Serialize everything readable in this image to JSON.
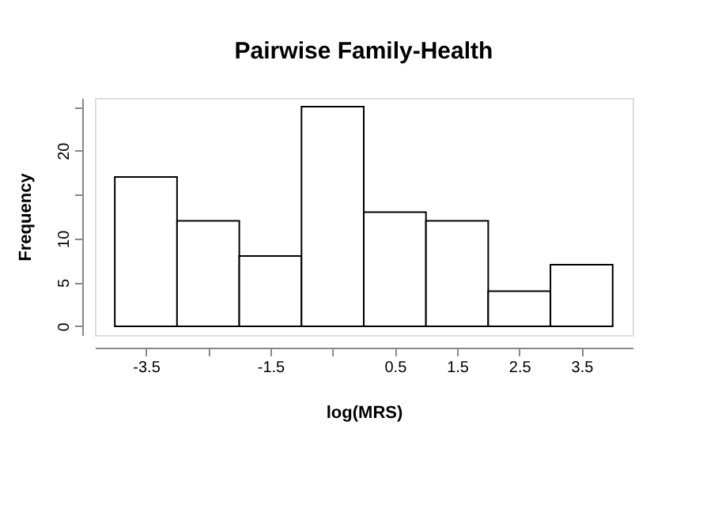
{
  "chart_data": {
    "type": "histogram",
    "title": "Pairwise Family-Health",
    "xlabel": "log(MRS)",
    "ylabel": "Frequency",
    "bins": [
      -4,
      -3,
      -2,
      -1,
      0,
      1,
      2,
      3,
      4
    ],
    "values": [
      17,
      12,
      8,
      25,
      13,
      12,
      4,
      7
    ],
    "color": "#ffffff",
    "xlim": [
      -4.32,
      4.32
    ],
    "ylim": [
      -1,
      26
    ],
    "xticks": [
      -3.5,
      {
        "value": -2.5,
        "label": null
      },
      -1.5,
      {
        "value": -0.5,
        "label": null
      },
      0.5,
      1.5,
      2.5,
      3.5
    ],
    "yticks": [
      0,
      5,
      10,
      {
        "value": 15,
        "label": null
      },
      20,
      {
        "value": 25,
        "label": null
      }
    ],
    "grid": false
  }
}
